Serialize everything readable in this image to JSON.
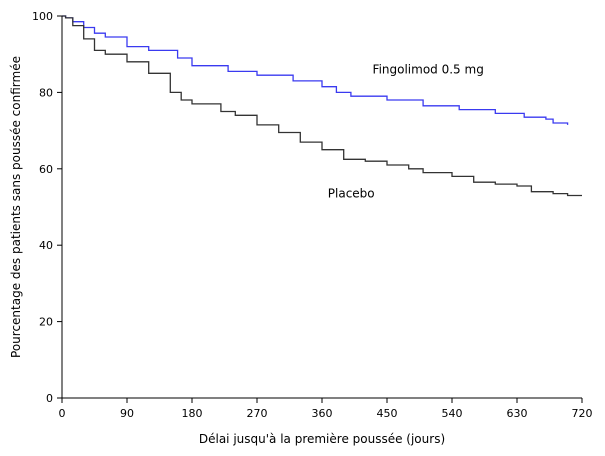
{
  "chart_data": {
    "type": "line",
    "title": "",
    "xlabel": "Délai jusqu'à la première poussée (jours)",
    "ylabel": "Pourcentage des patients sans poussée confirmée",
    "xlim": [
      0,
      720
    ],
    "ylim": [
      0,
      100
    ],
    "xticks": [
      0,
      90,
      180,
      270,
      360,
      450,
      540,
      630,
      720
    ],
    "yticks": [
      0,
      20,
      40,
      60,
      80,
      100
    ],
    "grid": false,
    "series": [
      {
        "name": "Fingolimod 0.5 mg",
        "color": "#3a3af0",
        "x": [
          0,
          5,
          15,
          30,
          45,
          60,
          90,
          120,
          160,
          180,
          230,
          270,
          320,
          360,
          380,
          400,
          450,
          500,
          550,
          600,
          640,
          670,
          680,
          700
        ],
        "y": [
          100,
          99.5,
          98.5,
          97,
          95.5,
          94.5,
          92,
          91,
          89,
          87,
          85.5,
          84.5,
          83,
          81.5,
          80,
          79,
          78,
          76.5,
          75.5,
          74.5,
          73.5,
          73,
          72,
          71.5
        ]
      },
      {
        "name": "Placebo",
        "color": "#333333",
        "x": [
          0,
          5,
          15,
          30,
          45,
          60,
          90,
          120,
          150,
          165,
          180,
          220,
          240,
          270,
          300,
          330,
          360,
          390,
          420,
          450,
          480,
          500,
          540,
          570,
          600,
          630,
          650,
          680,
          700,
          720
        ],
        "y": [
          100,
          99.5,
          97.5,
          94,
          91,
          90,
          88,
          85,
          80,
          78,
          77,
          75,
          74,
          71.5,
          69.5,
          67,
          65,
          62.5,
          62,
          61,
          60,
          59,
          58,
          56.5,
          56,
          55.5,
          54,
          53.5,
          53,
          53
        ]
      }
    ],
    "annotations": [
      {
        "text": "Fingolimod 0.5 mg",
        "x": 430,
        "y": 85,
        "series": 0
      },
      {
        "text": "Placebo",
        "x": 368,
        "y": 52.5,
        "series": 1
      }
    ]
  }
}
